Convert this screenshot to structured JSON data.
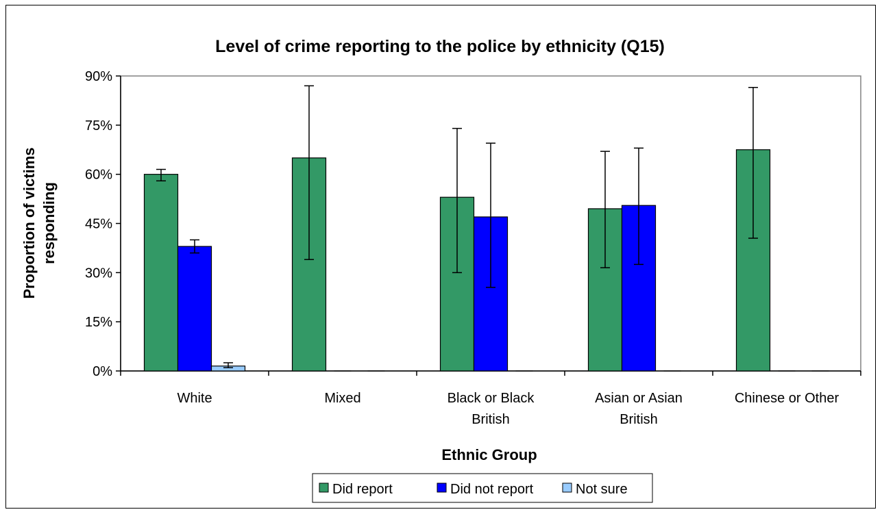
{
  "chart_data": {
    "type": "bar",
    "title": "Level of crime reporting to the police by ethnicity (Q15)",
    "xlabel": "Ethnic Group",
    "ylabel_lines": [
      "Proportion of victims",
      "responding"
    ],
    "ylim": [
      0,
      90
    ],
    "yticks": [
      "0%",
      "15%",
      "30%",
      "45%",
      "60%",
      "75%",
      "90%"
    ],
    "ytick_values": [
      0,
      15,
      30,
      45,
      60,
      75,
      90
    ],
    "categories": [
      [
        "White"
      ],
      [
        "Mixed"
      ],
      [
        "Black or Black",
        "British"
      ],
      [
        "Asian or Asian",
        "British"
      ],
      [
        "Chinese or Other"
      ]
    ],
    "series": [
      {
        "name": "Did report",
        "color": "#339966",
        "values": [
          60,
          65,
          53,
          49.5,
          67.5
        ],
        "err_low": [
          58,
          34,
          30,
          31.5,
          40.5
        ],
        "err_high": [
          61.5,
          87,
          74,
          67,
          86.5
        ]
      },
      {
        "name": "Did not report",
        "color": "#0000FF",
        "values": [
          38,
          0,
          47,
          50.5,
          0
        ],
        "err_low": [
          36,
          null,
          25.5,
          32.5,
          null
        ],
        "err_high": [
          40,
          null,
          69.5,
          68,
          null
        ]
      },
      {
        "name": "Not sure",
        "color": "#99CCFF",
        "values": [
          1.5,
          0,
          0,
          0,
          0
        ],
        "err_low": [
          1,
          null,
          null,
          null,
          null
        ],
        "err_high": [
          2.5,
          null,
          null,
          null,
          null
        ]
      }
    ],
    "grid": false,
    "legend_position": "bottom"
  }
}
